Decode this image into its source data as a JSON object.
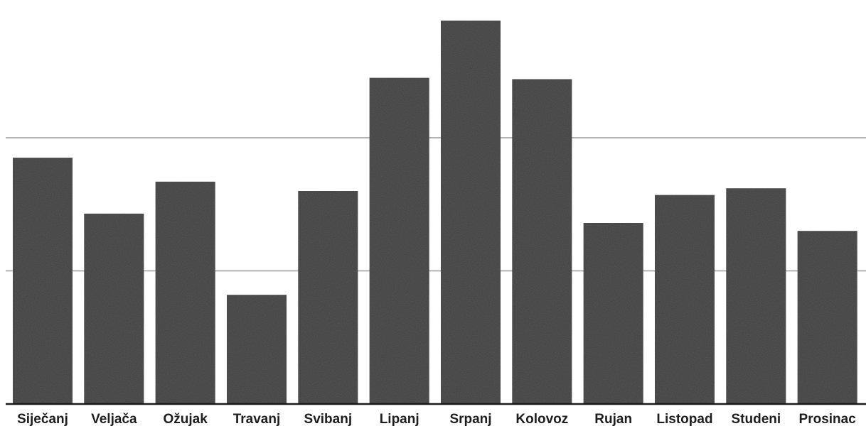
{
  "chart_data": {
    "type": "bar",
    "title": "",
    "xlabel": "",
    "ylabel": "",
    "categories": [
      "Siječanj",
      "Veljača",
      "Ožujak",
      "Travanj",
      "Svibanj",
      "Lipanj",
      "Srpanj",
      "Kolovoz",
      "Rujan",
      "Listopad",
      "Studeni",
      "Prosinac"
    ],
    "values": [
      185,
      143,
      167,
      82,
      160,
      245,
      288,
      244,
      136,
      157,
      162,
      130
    ],
    "ylim": [
      0,
      296
    ],
    "gridlines": [
      100,
      200
    ],
    "grid": true,
    "bar_color": "#3b3b3b",
    "grid_color": "#9a9a9a",
    "axis_color": "#1a1a1a"
  }
}
